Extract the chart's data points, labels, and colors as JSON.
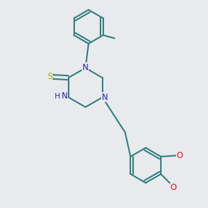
{
  "bg_color": "#e8eaed",
  "bond_color": "#2d7d7d",
  "bond_width": 1.5,
  "N_color": "#1a1acc",
  "S_color": "#b8a800",
  "O_color": "#cc1a1a",
  "H_color": "#1a1acc",
  "text_fontsize": 8.5,
  "fig_size": [
    3.0,
    3.0
  ],
  "dpi": 100,
  "xlim": [
    0,
    10
  ],
  "ylim": [
    0,
    10
  ]
}
